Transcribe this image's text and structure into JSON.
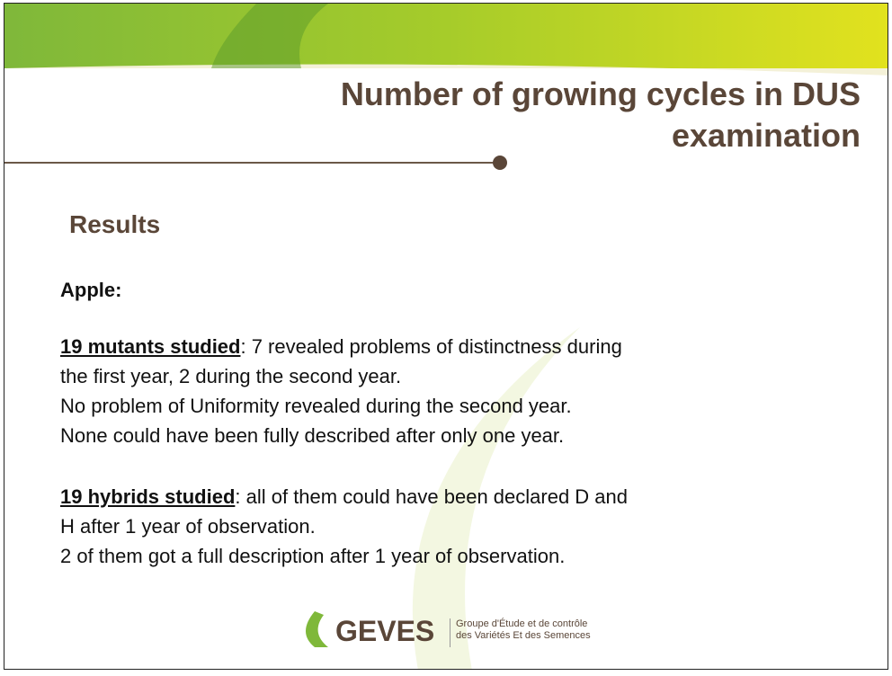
{
  "header": {
    "title_line1": "Number of growing cycles in DUS",
    "title_line2": "examination"
  },
  "section": "Results",
  "crop": "Apple:",
  "paragraphs": [
    {
      "lead": "19 mutants studied",
      "lines": [
        ": 7 revealed  problems of distinctness during",
        "the first year, 2 during the second year.",
        "No problem of Uniformity revealed  during the second year.",
        "None could have  been fully described after only one year."
      ]
    },
    {
      "lead": "19 hybrids studied",
      "lines": [
        ": all of them could have  been declared D and",
        "H after  1 year of observation.",
        "2 of them got a full description after 1 year of observation."
      ]
    }
  ],
  "footer": {
    "logo": "GEVES",
    "tagline1": "Groupe d'Étude et de contrôle",
    "tagline2": "des Variétés Et des Semences"
  }
}
